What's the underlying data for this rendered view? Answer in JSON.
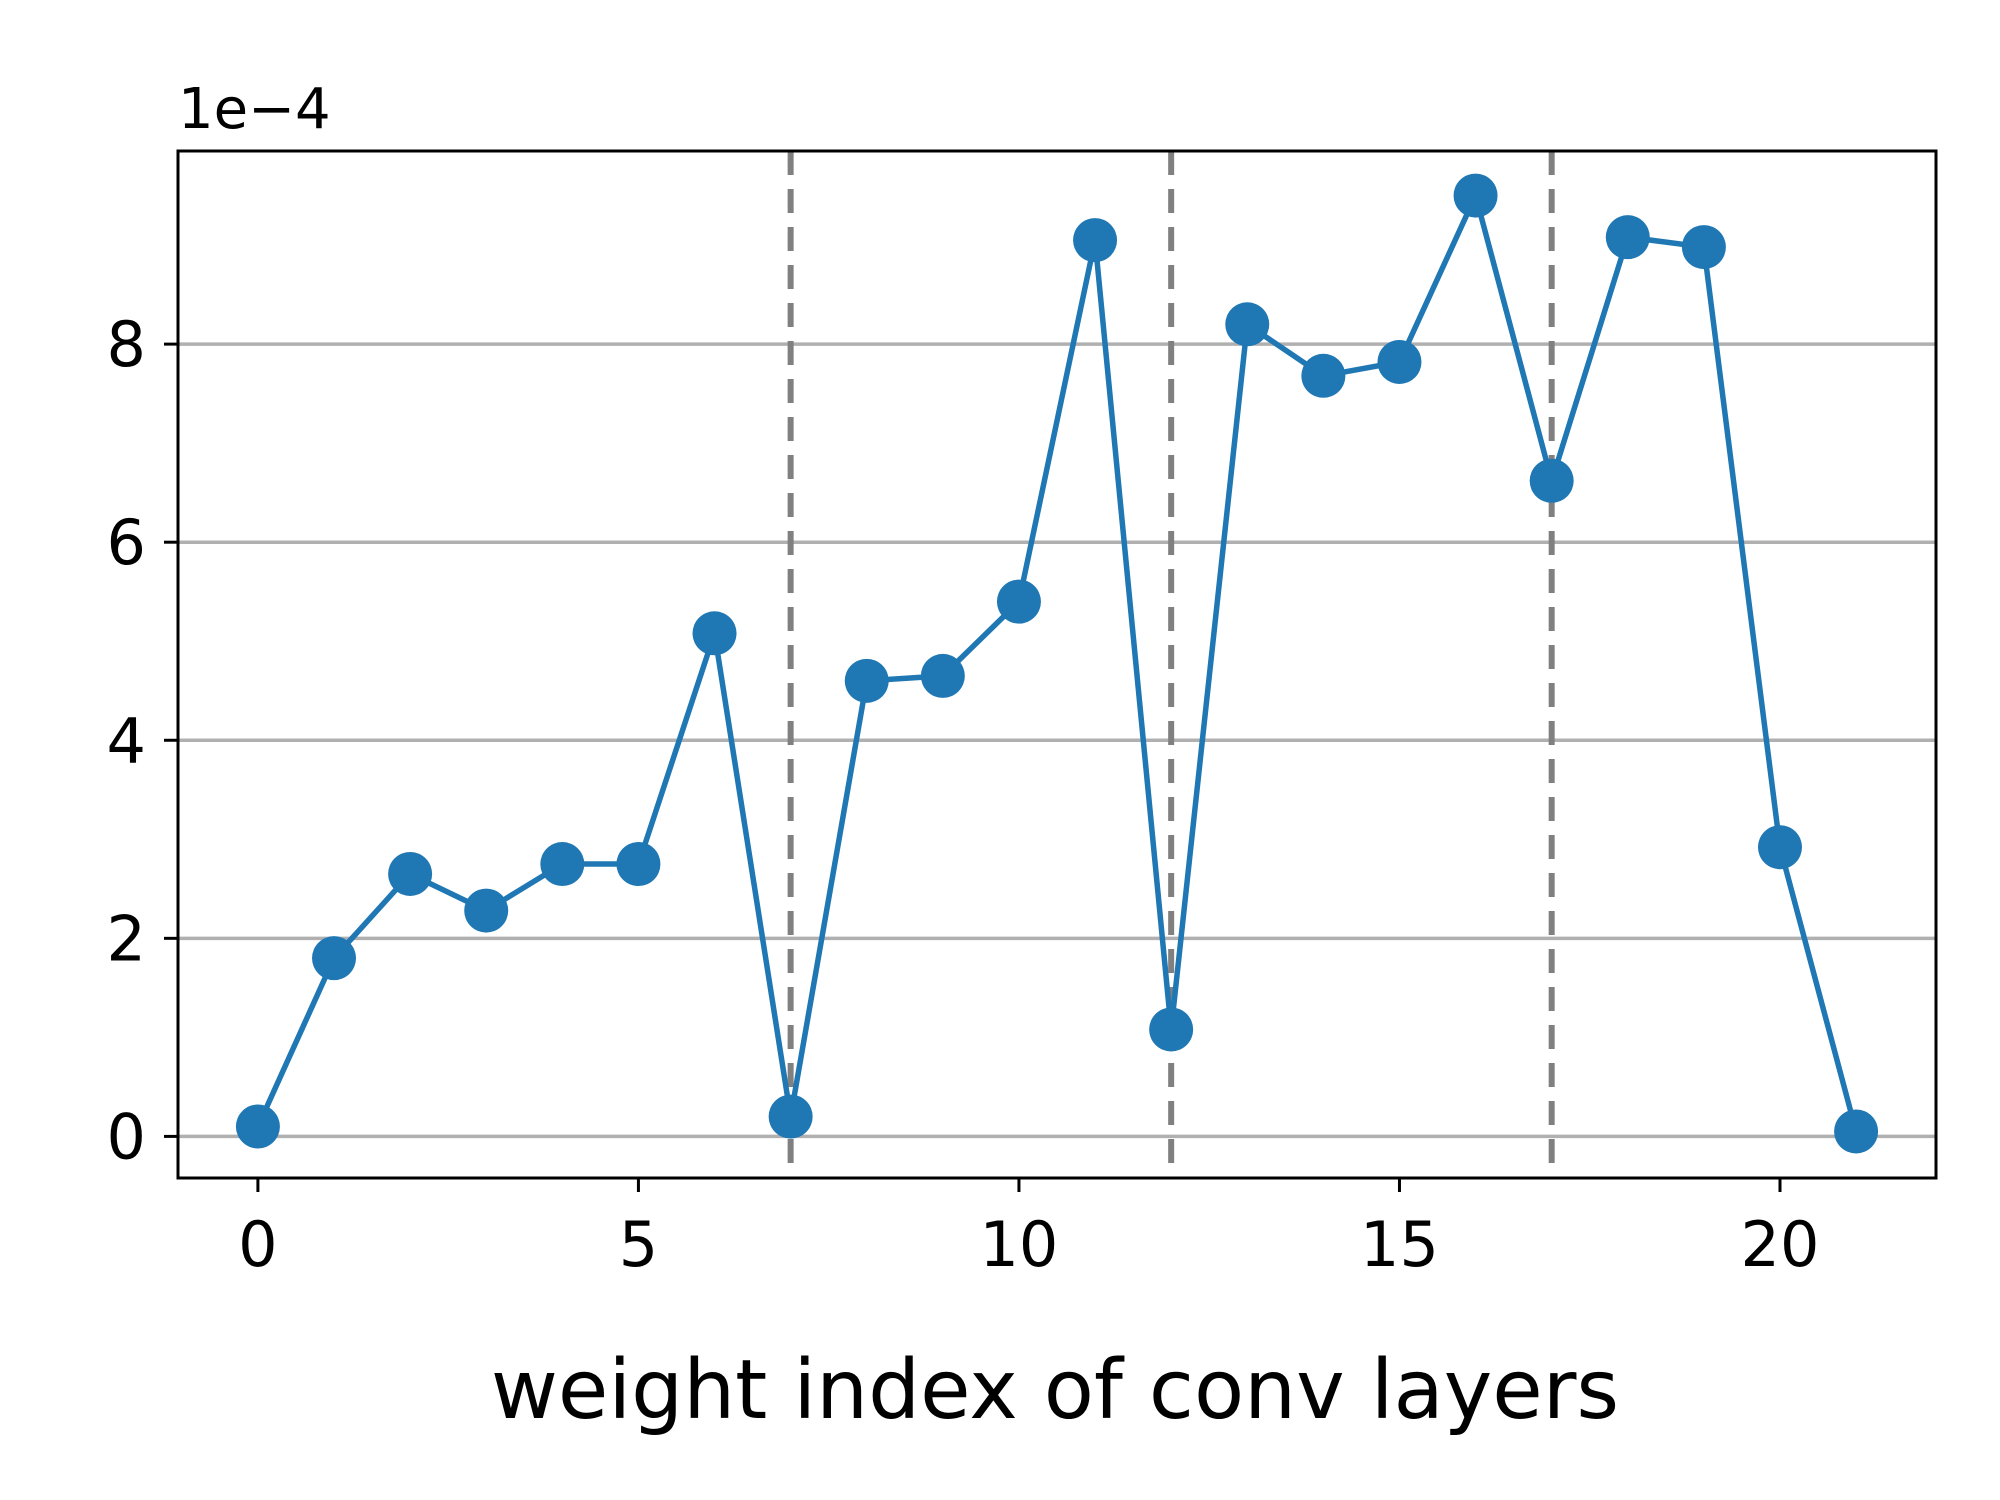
{
  "chart_data": {
    "type": "line",
    "xlabel": "weight index of conv layers",
    "ylabel": "",
    "offset_text": "1e−4",
    "xlim": [
      -1.05,
      22.05
    ],
    "ylim": [
      -0.42,
      9.95
    ],
    "xticks": [
      0,
      5,
      10,
      15,
      20
    ],
    "xtick_labels": [
      "0",
      "5",
      "10",
      "15",
      "20"
    ],
    "yticks": [
      0,
      2,
      4,
      6,
      8
    ],
    "ytick_labels": [
      "0",
      "2",
      "4",
      "6",
      "8"
    ],
    "grid": "horizontal",
    "vertical_lines": [
      7,
      12,
      17
    ],
    "series": [
      {
        "x": [
          0,
          1,
          2,
          3,
          4,
          5,
          6,
          7,
          8,
          9,
          10,
          11,
          12,
          13,
          14,
          15,
          16,
          17,
          18,
          19,
          20,
          21
        ],
        "y": [
          0.1,
          1.8,
          2.65,
          2.28,
          2.75,
          2.75,
          5.08,
          0.2,
          4.6,
          4.65,
          5.4,
          9.05,
          1.08,
          8.2,
          7.68,
          7.82,
          9.5,
          6.62,
          9.08,
          8.98,
          2.92,
          0.05
        ],
        "color": "#1f77b4"
      }
    ]
  }
}
